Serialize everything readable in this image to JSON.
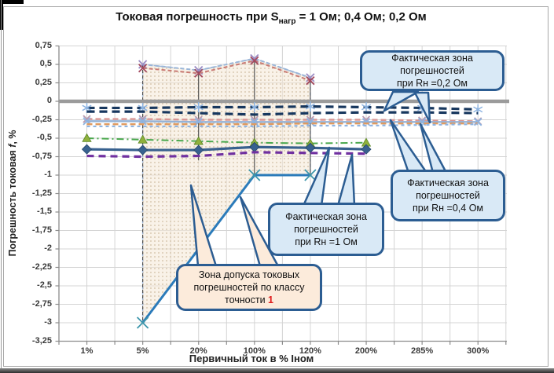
{
  "chart_data": {
    "type": "line",
    "title": "Токовая погрешность при Sнагр = 1 Ом; 0,4 Ом; 0,2 Ом",
    "title_parts": {
      "prefix": "Токовая погрешность при S",
      "sub": "нагр",
      "suffix": " = 1 Ом; 0,4 Ом; 0,2 Ом"
    },
    "xlabel": "Первичный ток в % Iном",
    "ylabel": "Погрешность токовая f, %",
    "ylabel_parts": {
      "prefix": "Погрешность токовая ",
      "italic": "f",
      "suffix": ", %"
    },
    "categories": [
      "1%",
      "5%",
      "20%",
      "100%",
      "120%",
      "200%",
      "285%",
      "300%"
    ],
    "y_ticks": [
      "0,75",
      "0,5",
      "0,25",
      "0",
      "-0,25",
      "-0,5",
      "-0,75",
      "-1",
      "-1,25",
      "-1,5",
      "-1,75",
      "-2",
      "-2,25",
      "-2,5",
      "-2,75",
      "-3",
      "-3,25"
    ],
    "ylim": [
      -3.25,
      0.75
    ],
    "grid": true,
    "legend": "none",
    "zero_line": {
      "value": 0,
      "color": "#9b9b9b",
      "width": 4.5
    },
    "axis": {
      "grid_color": "#d4d4d4",
      "axis_color": "#8c8c8c",
      "tick_label_color": "#3a3a3a"
    },
    "series": [
      {
        "id": "tolerance-top-blue",
        "color": "#9ab6d8",
        "width": 2,
        "dash": "5 3",
        "marker": "x",
        "marker_color": "#9b8cc4",
        "marker_size": 5,
        "values": [
          null,
          0.5,
          0.42,
          0.58,
          0.32,
          null,
          null,
          null
        ]
      },
      {
        "id": "tolerance-top-red",
        "color": "#c97b74",
        "width": 2,
        "dash": "5 3",
        "marker": "x",
        "marker_color": "#a34a5f",
        "marker_size": 5,
        "values": [
          null,
          0.45,
          0.38,
          0.55,
          0.28,
          null,
          null,
          null
        ]
      },
      {
        "id": "rn-0-2-upper",
        "color": "#17375e",
        "width": 3.2,
        "dash": "10 6",
        "marker": "star",
        "marker_color": "#8db4e2",
        "marker_size": 6.5,
        "values": [
          -0.09,
          -0.09,
          -0.08,
          -0.08,
          -0.07,
          -0.08,
          -0.09,
          -0.11
        ]
      },
      {
        "id": "rn-0-2-lower",
        "color": "#17375e",
        "width": 3.2,
        "dash": "10 6",
        "marker": "none",
        "marker_color": "",
        "marker_size": 0,
        "values": [
          -0.14,
          -0.14,
          -0.16,
          -0.18,
          -0.16,
          -0.15,
          -0.15,
          -0.16
        ]
      },
      {
        "id": "rn-0-4-salmon",
        "color": "#d99694",
        "width": 2.4,
        "dash": "7 4",
        "marker": "x",
        "marker_color": "#b99bb0",
        "marker_size": 4.5,
        "values": [
          -0.24,
          -0.24,
          -0.25,
          -0.25,
          -0.25,
          -0.25,
          -0.26,
          -0.27
        ]
      },
      {
        "id": "rn-0-4-lightblue",
        "color": "#95b3d7",
        "width": 2.4,
        "dash": "",
        "marker": "x",
        "marker_color": "#8db4e2",
        "marker_size": 4.5,
        "values": [
          -0.27,
          -0.27,
          -0.28,
          -0.28,
          -0.28,
          -0.28,
          -0.28,
          -0.28
        ]
      },
      {
        "id": "rn-0-4-orange",
        "color": "#e09a5f",
        "width": 2.4,
        "dash": "7 4",
        "marker": "none",
        "marker_color": "",
        "marker_size": 0,
        "values": [
          -0.31,
          -0.31,
          -0.31,
          -0.31,
          -0.3,
          -0.3,
          -0.3,
          -0.3
        ]
      },
      {
        "id": "rn-0-4-periwinkle",
        "color": "#8eb4e3",
        "width": 2.2,
        "dash": "4 4",
        "marker": "none",
        "marker_color": "",
        "marker_size": 0,
        "values": [
          -0.34,
          -0.34,
          -0.34,
          -0.34,
          -0.33,
          -0.33,
          -0.32,
          -0.31
        ]
      },
      {
        "id": "rn-1-green",
        "color": "#4aa84e",
        "width": 2,
        "dash": "9 4 2 4",
        "marker": "triangle",
        "marker_color": "#8fb13d",
        "marker_size": 5.5,
        "values": [
          -0.5,
          -0.52,
          -0.54,
          -0.56,
          -0.57,
          -0.56,
          null,
          null
        ]
      },
      {
        "id": "rn-1-steelblue",
        "color": "#38618f",
        "width": 3.2,
        "dash": "",
        "marker": "diamond",
        "marker_color": "#38618f",
        "marker_size": 6,
        "values": [
          -0.65,
          -0.66,
          -0.66,
          -0.62,
          -0.63,
          -0.65,
          null,
          null
        ]
      },
      {
        "id": "rn-1-purple",
        "color": "#7030a0",
        "width": 3.2,
        "dash": "9 6",
        "marker": "none",
        "marker_color": "",
        "marker_size": 0,
        "values": [
          -0.74,
          -0.75,
          -0.74,
          -0.69,
          -0.7,
          -0.71,
          null,
          null
        ]
      },
      {
        "id": "class-1-lower-limit",
        "color": "#2b7bba",
        "width": 3,
        "dash": "",
        "marker": "x",
        "marker_color": "#3d96ab",
        "marker_size": 7,
        "values": [
          null,
          -3.0,
          null,
          -1.0,
          -1.0,
          null,
          null,
          null
        ]
      }
    ],
    "tolerance_zone": {
      "top_categories": [
        "5%",
        "20%",
        "100%",
        "120%"
      ],
      "top_values": [
        0.5,
        0.42,
        0.58,
        0.32
      ],
      "bottom_categories": [
        "5%",
        "100%",
        "120%"
      ],
      "bottom_values": [
        -3.0,
        -1.0,
        -1.0
      ],
      "fill": "#f4e7d5",
      "dot_color": "#cbb79a",
      "border_color": "#9db6d9"
    },
    "stems": [
      {
        "category": "5%",
        "from": 0.5,
        "to": -3.0,
        "dashed": true
      },
      {
        "category": "20%",
        "from": 0.42,
        "to": -0.8,
        "dashed": false
      },
      {
        "category": "100%",
        "from": 0.58,
        "to": -1.0,
        "dashed": false
      },
      {
        "category": "120%",
        "from": 0.32,
        "to": -1.0,
        "dashed": false
      }
    ],
    "callouts": {
      "border_color": "#2c5d92",
      "r02": {
        "fill": "#d9e9f6",
        "lines": [
          "Фактическая зона",
          "погрешностей",
          "при Rн =0,2 Ом"
        ]
      },
      "r04": {
        "fill": "#d9e9f6",
        "lines": [
          "Фактическая зона",
          "погрешностей",
          "при Rн =0,4 Ом"
        ]
      },
      "r1": {
        "fill": "#d9e9f6",
        "lines": [
          "Фактическая зона",
          "погрешностей",
          "при Rн =1 Ом"
        ]
      },
      "zone": {
        "fill": "#fcebdb",
        "lines": [
          "Зона допуска токовых",
          "погрешностей по классу"
        ],
        "last_line_prefix": "точности ",
        "class_value": "1",
        "class_color": "#e01b1b"
      }
    }
  }
}
